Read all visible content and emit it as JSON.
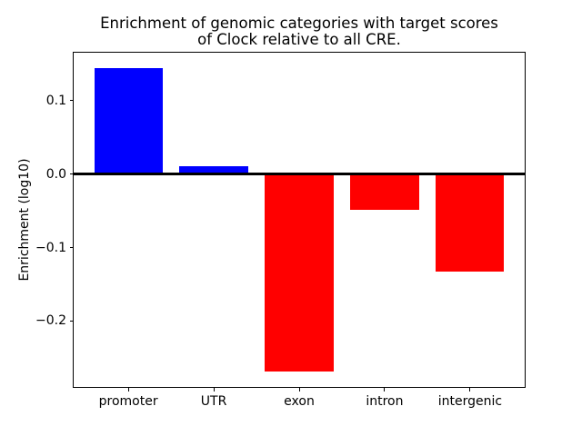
{
  "chart_data": {
    "type": "bar",
    "title": "Enrichment of genomic categories with target scores\nof Clock relative to all CRE.",
    "title_lines": [
      "Enrichment of genomic categories with target scores",
      "of Clock relative to all CRE."
    ],
    "ylabel": "Enrichment (log10)",
    "xlabel": "",
    "categories": [
      "promoter",
      "UTR",
      "exon",
      "intron",
      "intergenic"
    ],
    "values": [
      0.145,
      0.011,
      -0.269,
      -0.048,
      -0.133
    ],
    "bar_colors": [
      "#0000ff",
      "#0000ff",
      "#ff0000",
      "#ff0000",
      "#ff0000"
    ],
    "positive_color": "#0000ff",
    "negative_color": "#ff0000",
    "yticks": [
      {
        "value": 0.1,
        "label": "0.1"
      },
      {
        "value": 0.0,
        "label": "0.0"
      },
      {
        "value": -0.1,
        "label": "−0.1"
      },
      {
        "value": -0.2,
        "label": "−0.2"
      }
    ],
    "ylim": [
      -0.2905,
      0.1655
    ],
    "xlim": [
      -0.64,
      4.64
    ],
    "bar_width": 0.8,
    "grid": false,
    "zero_line": true,
    "background_color": "#ffffff",
    "axis_color": "#000000"
  }
}
